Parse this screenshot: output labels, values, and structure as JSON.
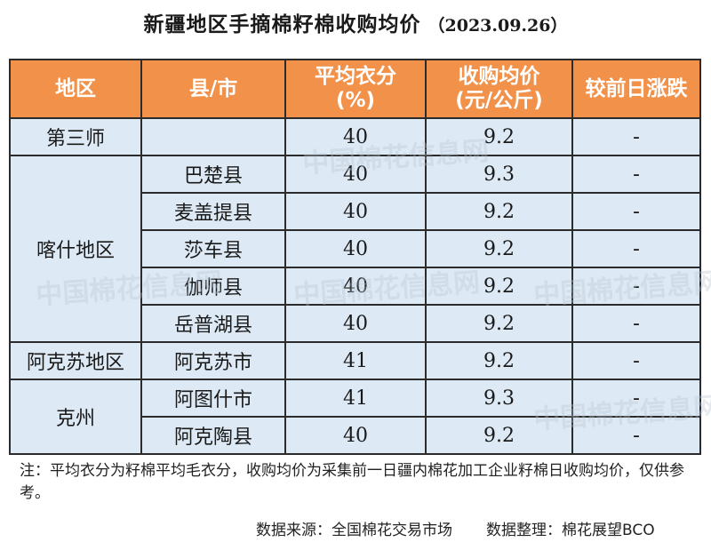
{
  "title": "新疆地区手摘棉籽棉收购均价",
  "date": "（2023.09.26）",
  "columns": {
    "region": "地区",
    "county": "县/市",
    "lint_line1": "平均衣分",
    "lint_line2": "(%)",
    "price_line1": "收购均价",
    "price_line2": "(元/公斤)",
    "change": "较前日涨跌"
  },
  "rows": [
    {
      "region": "第三师",
      "county": "",
      "lint": "40",
      "price": "9.2",
      "change": "-"
    },
    {
      "region": "喀什地区",
      "county": "巴楚县",
      "lint": "40",
      "price": "9.3",
      "change": "-"
    },
    {
      "county": "麦盖提县",
      "lint": "40",
      "price": "9.2",
      "change": "-"
    },
    {
      "county": "莎车县",
      "lint": "40",
      "price": "9.2",
      "change": "-"
    },
    {
      "county": "伽师县",
      "lint": "40",
      "price": "9.2",
      "change": "-"
    },
    {
      "county": "岳普湖县",
      "lint": "40",
      "price": "9.2",
      "change": "-"
    },
    {
      "region": "阿克苏地区",
      "county": "阿克苏市",
      "lint": "41",
      "price": "9.2",
      "change": "-"
    },
    {
      "region": "克州",
      "county": "阿图什市",
      "lint": "41",
      "price": "9.3",
      "change": "-"
    },
    {
      "county": "阿克陶县",
      "lint": "40",
      "price": "9.2",
      "change": "-"
    }
  ],
  "note": "注：平均衣分为籽棉平均毛衣分，收购均价为采集前一日疆内棉花加工企业籽棉日收购均价，仅供参考。",
  "source": "数据来源：全国棉花交易市场",
  "compiled_by": "数据整理：棉花展望BCO",
  "watermark": "中国棉花信息网",
  "colors": {
    "header": "#f2924a",
    "cell": "#dde9f4",
    "border": "#2b2b2b"
  }
}
